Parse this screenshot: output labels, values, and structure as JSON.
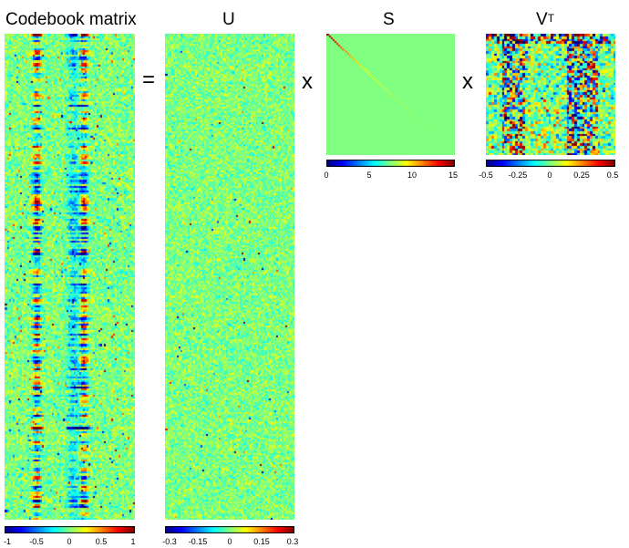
{
  "figure": {
    "equals_sign": "=",
    "times_sign": "x",
    "codebook": {
      "title": "Codebook matrix",
      "colorbar_ticks": [
        "-1",
        "-0.5",
        "0",
        "0.5",
        "1"
      ],
      "colorbar_range": [
        -1,
        1
      ]
    },
    "u": {
      "title": "U",
      "colorbar_ticks": [
        "-0.3",
        "-0.15",
        "0",
        "0.15",
        "0.3"
      ],
      "colorbar_range": [
        -0.3,
        0.3
      ]
    },
    "s": {
      "title": "S",
      "colorbar_ticks": [
        "0",
        "5",
        "10",
        "15"
      ],
      "colorbar_range": [
        0,
        15
      ]
    },
    "vt": {
      "title": "V",
      "title_superscript": "T",
      "colorbar_ticks": [
        "-0.5",
        "-0.25",
        "0",
        "0.25",
        "0.5"
      ],
      "colorbar_range": [
        -0.5,
        0.5
      ]
    }
  },
  "colors": {
    "colormap": "jet",
    "background": "#ffffff"
  }
}
